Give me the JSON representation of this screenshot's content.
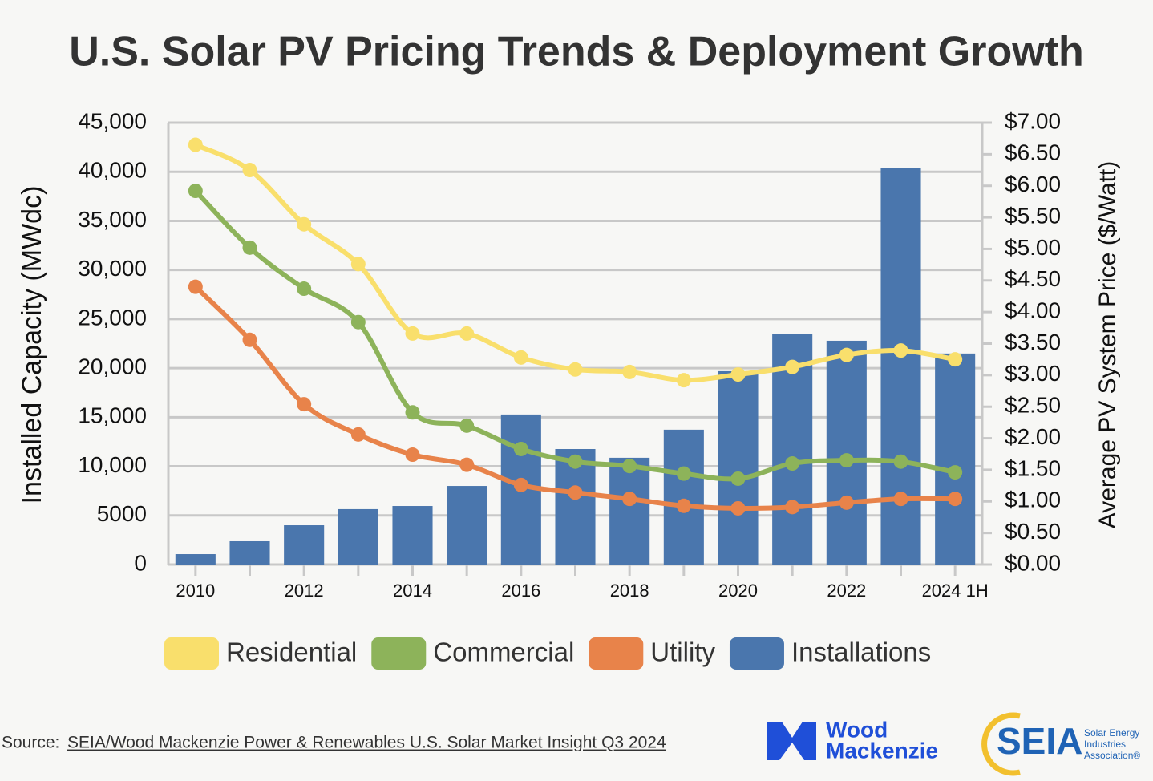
{
  "chart_data": {
    "type": "bar",
    "title": "U.S. Solar PV Pricing Trends & Deployment Growth",
    "y_label": "Installed Capacity (MWdc)",
    "y2_label": "Average PV System Price ($/Watt)",
    "categories": [
      "2010",
      null,
      "2012",
      null,
      "2014",
      null,
      "2016",
      null,
      "2018",
      null,
      "2020",
      null,
      "2022",
      null,
      "2024 1H"
    ],
    "series": [
      {
        "name": "Residential",
        "color": "#f9df6c",
        "type": "line",
        "axis": "y2",
        "values": [
          6.65,
          6.25,
          5.39,
          4.76,
          3.66,
          3.66,
          3.28,
          3.09,
          3.05,
          2.92,
          3.01,
          3.13,
          3.32,
          3.39,
          3.25
        ]
      },
      {
        "name": "Commercial",
        "color": "#8db35a",
        "type": "line",
        "axis": "y2",
        "values": [
          5.92,
          5.02,
          4.37,
          3.84,
          2.41,
          2.2,
          1.83,
          1.63,
          1.56,
          1.44,
          1.36,
          1.6,
          1.65,
          1.63,
          1.46
        ]
      },
      {
        "name": "Utility",
        "color": "#e8834a",
        "type": "line",
        "axis": "y2",
        "values": [
          4.4,
          3.56,
          2.54,
          2.06,
          1.74,
          1.58,
          1.26,
          1.14,
          1.04,
          0.93,
          0.89,
          0.91,
          0.98,
          1.04,
          1.04
        ]
      },
      {
        "name": "Installations",
        "color": "#4a76ad",
        "type": "bar",
        "values": [
          1060,
          2370,
          4000,
          5640,
          5960,
          8000,
          15280,
          11760,
          10870,
          13730,
          19690,
          23450,
          22790,
          40360,
          21490
        ]
      }
    ],
    "ylim": [
      0,
      45000
    ],
    "yticks": [
      0,
      5000,
      {
        "value": 10000,
        "label": "10,000"
      },
      {
        "value": 15000,
        "label": "15,000"
      },
      {
        "value": 20000,
        "label": "20,000"
      },
      {
        "value": 25000,
        "label": "25,000"
      },
      {
        "value": 30000,
        "label": "30,000"
      },
      {
        "value": 35000,
        "label": "35,000"
      },
      {
        "value": 40000,
        "label": "40,000"
      },
      {
        "value": 45000,
        "label": "45,000"
      }
    ],
    "y2lim": [
      0,
      7
    ],
    "y2ticks": [
      {
        "value": 0,
        "label": "$0.00"
      },
      {
        "value": 0.5,
        "label": "$0.50"
      },
      {
        "value": 1,
        "label": "$1.00"
      },
      {
        "value": 1.5,
        "label": "$1.50"
      },
      {
        "value": 2,
        "label": "$2.00"
      },
      {
        "value": 2.5,
        "label": "$2.50"
      },
      {
        "value": 3,
        "label": "$3.00"
      },
      {
        "value": 3.5,
        "label": "$3.50"
      },
      {
        "value": 4,
        "label": "$4.00"
      },
      {
        "value": 4.5,
        "label": "$4.50"
      },
      {
        "value": 5,
        "label": "$5.00"
      },
      {
        "value": 5.5,
        "label": "$5.50"
      },
      {
        "value": 6,
        "label": "$6.00"
      },
      {
        "value": 6.5,
        "label": "$6.50"
      },
      {
        "value": 7,
        "label": "$7.00"
      }
    ],
    "grid": true,
    "legend": "bottom"
  },
  "source": {
    "prefix": "Source:",
    "link": "SEIA/Wood Mackenzie Power & Renewables U.S. Solar Market Insight Q3 2024"
  },
  "logos": {
    "wood_mackenzie": [
      "Wood",
      "Mackenzie"
    ],
    "seia": "SEIA",
    "seia_name": [
      "Solar Energy",
      "Industries",
      "Association®"
    ]
  }
}
